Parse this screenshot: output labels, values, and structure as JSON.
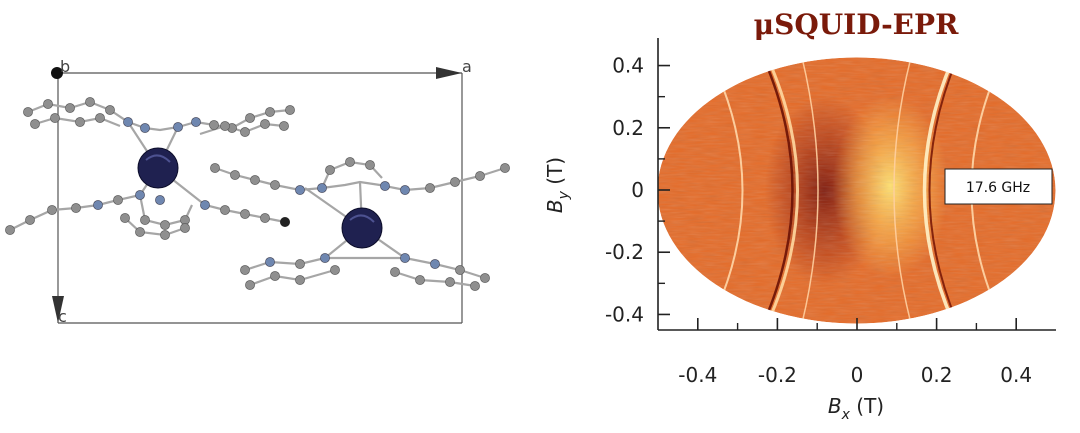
{
  "crystal_panel": {
    "axis_labels": {
      "a": "a",
      "b": "b",
      "c": "c"
    },
    "colors": {
      "frame": "#555555",
      "carbon": "#8f8f8f",
      "nitrogen": "#6f87b0",
      "metal": "#1f2150",
      "bond": "#a6a6a6"
    }
  },
  "epr_panel": {
    "title": "μSQUID-EPR",
    "frequency_label": "17.6 GHz",
    "colors": {
      "map_base": "#e56a26",
      "map_dark": "#7a1408",
      "map_light": "#ffe170",
      "axis": "#222222"
    },
    "chart_data": {
      "type": "heatmap",
      "title": "μSQUID-EPR",
      "xlabel": {
        "symbol": "B",
        "sub": "x",
        "unit": " (T)"
      },
      "ylabel": {
        "symbol": "B",
        "sub": "y",
        "unit": " (T)"
      },
      "xlim": [
        -0.5,
        0.5
      ],
      "ylim": [
        -0.45,
        0.45
      ],
      "x_ticks": [
        -0.4,
        -0.2,
        0,
        0.2,
        0.4
      ],
      "x_tick_labels": [
        "-0.4",
        "-0.2",
        "0",
        "0.2",
        "0.4"
      ],
      "y_ticks": [
        0.4,
        0.2,
        0,
        -0.2,
        -0.4
      ],
      "y_tick_labels": [
        "0.4",
        "0.2",
        "0",
        "-0.2",
        "-0.4"
      ],
      "x_minor_ticks": [
        -0.3,
        -0.1,
        0.1,
        0.3
      ],
      "y_minor_ticks": [
        0.3,
        0.1,
        -0.1,
        -0.3
      ],
      "grid": false
    }
  }
}
